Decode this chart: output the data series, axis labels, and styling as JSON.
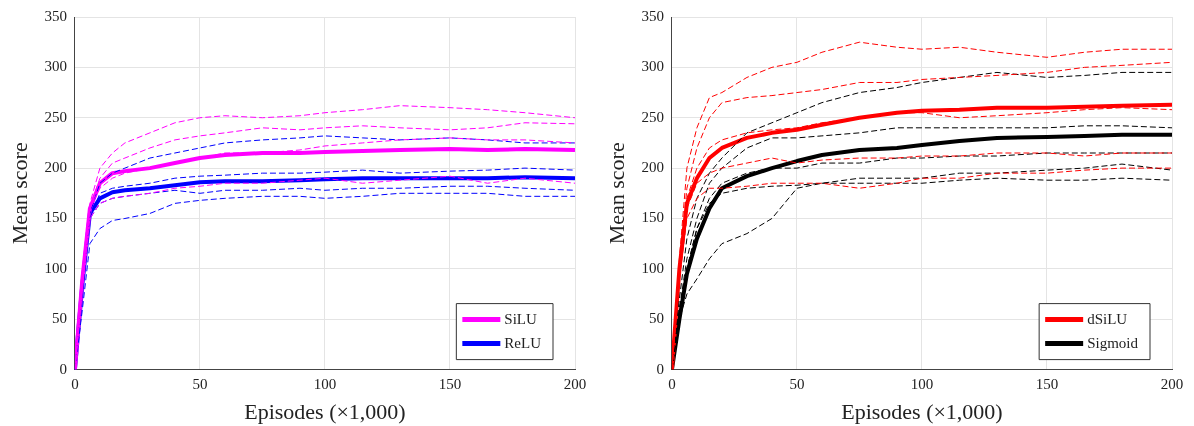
{
  "chart_data": [
    {
      "type": "line",
      "xlabel": "Episodes (×1,000)",
      "ylabel": "Mean score",
      "x": [
        0,
        3,
        6,
        10,
        15,
        20,
        30,
        40,
        50,
        60,
        75,
        90,
        100,
        115,
        130,
        150,
        165,
        180,
        200
      ],
      "xlim": [
        0,
        200
      ],
      "xticks": [
        0,
        50,
        100,
        150,
        200
      ],
      "ylim": [
        0,
        350
      ],
      "yticks": [
        0,
        50,
        100,
        150,
        200,
        250,
        300,
        350
      ],
      "grid": true,
      "legend": "bottom right",
      "marker": "none",
      "series": [
        {
          "color": "#ff00ff",
          "line_style": "dashed",
          "values": [
            0,
            90,
            165,
            200,
            215,
            225,
            235,
            245,
            250,
            252,
            250,
            252,
            255,
            258,
            262,
            260,
            258,
            255,
            250
          ]
        },
        {
          "color": "#ff00ff",
          "line_style": "dashed",
          "values": [
            0,
            85,
            160,
            190,
            205,
            210,
            220,
            228,
            232,
            235,
            240,
            238,
            240,
            242,
            240,
            238,
            240,
            245,
            244
          ]
        },
        {
          "color": "#ff00ff",
          "line_style": "dashed",
          "values": [
            0,
            80,
            160,
            180,
            190,
            195,
            200,
            205,
            210,
            215,
            215,
            218,
            222,
            225,
            228,
            230,
            228,
            228,
            225
          ]
        },
        {
          "color": "#ff00ff",
          "line_style": "dashed",
          "values": [
            0,
            80,
            150,
            165,
            170,
            172,
            175,
            180,
            182,
            185,
            185,
            188,
            190,
            185,
            188,
            192,
            185,
            190,
            185
          ]
        },
        {
          "color": "#0000ff",
          "line_style": "dashed",
          "values": [
            0,
            80,
            155,
            185,
            195,
            200,
            210,
            215,
            220,
            225,
            228,
            230,
            232,
            230,
            228,
            230,
            228,
            225,
            225
          ]
        },
        {
          "color": "#0000ff",
          "line_style": "dashed",
          "values": [
            0,
            80,
            150,
            175,
            180,
            182,
            185,
            190,
            192,
            193,
            195,
            195,
            196,
            198,
            195,
            197,
            198,
            200,
            198
          ]
        },
        {
          "color": "#0000ff",
          "line_style": "dashed",
          "values": [
            0,
            75,
            150,
            165,
            170,
            172,
            175,
            178,
            175,
            178,
            178,
            180,
            178,
            180,
            180,
            182,
            182,
            180,
            178
          ]
        },
        {
          "color": "#0000ff",
          "line_style": "dashed",
          "values": [
            0,
            60,
            125,
            140,
            148,
            150,
            155,
            165,
            168,
            170,
            172,
            172,
            170,
            172,
            175,
            175,
            175,
            172,
            172
          ]
        },
        {
          "name": "SiLU",
          "color": "#ff00ff",
          "line_style": "solid",
          "values": [
            0,
            90,
            160,
            185,
            195,
            197,
            200,
            205,
            210,
            213,
            215,
            215,
            216,
            217,
            218,
            219,
            218,
            219,
            218
          ]
        },
        {
          "name": "ReLU",
          "color": "#0000ff",
          "line_style": "solid",
          "values": [
            0,
            85,
            155,
            170,
            176,
            178,
            180,
            183,
            186,
            187,
            187,
            188,
            189,
            190,
            190,
            190,
            190,
            191,
            190
          ]
        }
      ]
    },
    {
      "type": "line",
      "xlabel": "Episodes (×1,000)",
      "ylabel": "Mean score",
      "x": [
        0,
        3,
        6,
        10,
        15,
        20,
        30,
        40,
        50,
        60,
        75,
        90,
        100,
        115,
        130,
        150,
        165,
        180,
        200
      ],
      "xlim": [
        0,
        200
      ],
      "xticks": [
        0,
        50,
        100,
        150,
        200
      ],
      "ylim": [
        0,
        350
      ],
      "yticks": [
        0,
        50,
        100,
        150,
        200,
        250,
        300,
        350
      ],
      "grid": true,
      "legend": "bottom right",
      "marker": "none",
      "series": [
        {
          "color": "#ff0000",
          "line_style": "dashed",
          "values": [
            0,
            110,
            200,
            240,
            270,
            275,
            290,
            300,
            305,
            315,
            325,
            320,
            318,
            320,
            315,
            310,
            315,
            318,
            318
          ]
        },
        {
          "color": "#ff0000",
          "line_style": "dashed",
          "values": [
            0,
            100,
            180,
            220,
            250,
            265,
            270,
            272,
            275,
            278,
            285,
            285,
            288,
            290,
            292,
            295,
            300,
            302,
            305
          ]
        },
        {
          "color": "#ff0000",
          "line_style": "dashed",
          "values": [
            0,
            100,
            170,
            200,
            220,
            228,
            235,
            238,
            240,
            245,
            250,
            255,
            255,
            250,
            252,
            255,
            258,
            260,
            258
          ]
        },
        {
          "color": "#ff0000",
          "line_style": "dashed",
          "values": [
            0,
            90,
            160,
            185,
            195,
            200,
            205,
            210,
            205,
            208,
            210,
            210,
            212,
            212,
            215,
            215,
            212,
            215,
            215
          ]
        },
        {
          "color": "#ff0000",
          "line_style": "dashed",
          "values": [
            0,
            90,
            150,
            170,
            180,
            180,
            182,
            185,
            185,
            185,
            180,
            185,
            190,
            190,
            195,
            195,
            198,
            200,
            200
          ]
        },
        {
          "color": "#000000",
          "line_style": "dashed",
          "values": [
            0,
            70,
            130,
            170,
            195,
            210,
            235,
            245,
            255,
            265,
            275,
            280,
            285,
            290,
            295,
            290,
            292,
            295,
            295
          ]
        },
        {
          "color": "#000000",
          "line_style": "dashed",
          "values": [
            0,
            60,
            110,
            150,
            185,
            200,
            220,
            230,
            230,
            232,
            235,
            240,
            240,
            240,
            240,
            240,
            242,
            242,
            240
          ]
        },
        {
          "color": "#000000",
          "line_style": "dashed",
          "values": [
            0,
            55,
            100,
            140,
            170,
            185,
            195,
            200,
            200,
            205,
            205,
            210,
            210,
            212,
            212,
            215,
            215,
            215,
            215
          ]
        },
        {
          "color": "#000000",
          "line_style": "dashed",
          "values": [
            0,
            50,
            75,
            90,
            110,
            125,
            135,
            150,
            180,
            185,
            190,
            190,
            190,
            195,
            195,
            198,
            200,
            204,
            198
          ]
        },
        {
          "color": "#000000",
          "line_style": "dashed",
          "values": [
            0,
            60,
            100,
            140,
            165,
            175,
            180,
            182,
            183,
            185,
            185,
            185,
            185,
            188,
            190,
            188,
            188,
            190,
            188
          ]
        },
        {
          "name": "dSiLU",
          "color": "#ff0000",
          "line_style": "solid",
          "values": [
            0,
            100,
            165,
            190,
            210,
            220,
            230,
            235,
            238,
            243,
            250,
            255,
            257,
            258,
            260,
            260,
            261,
            262,
            263
          ]
        },
        {
          "name": "Sigmoid",
          "color": "#000000",
          "line_style": "solid",
          "values": [
            0,
            50,
            95,
            130,
            160,
            180,
            192,
            200,
            207,
            213,
            218,
            220,
            223,
            227,
            230,
            231,
            232,
            233,
            233
          ]
        }
      ]
    }
  ]
}
